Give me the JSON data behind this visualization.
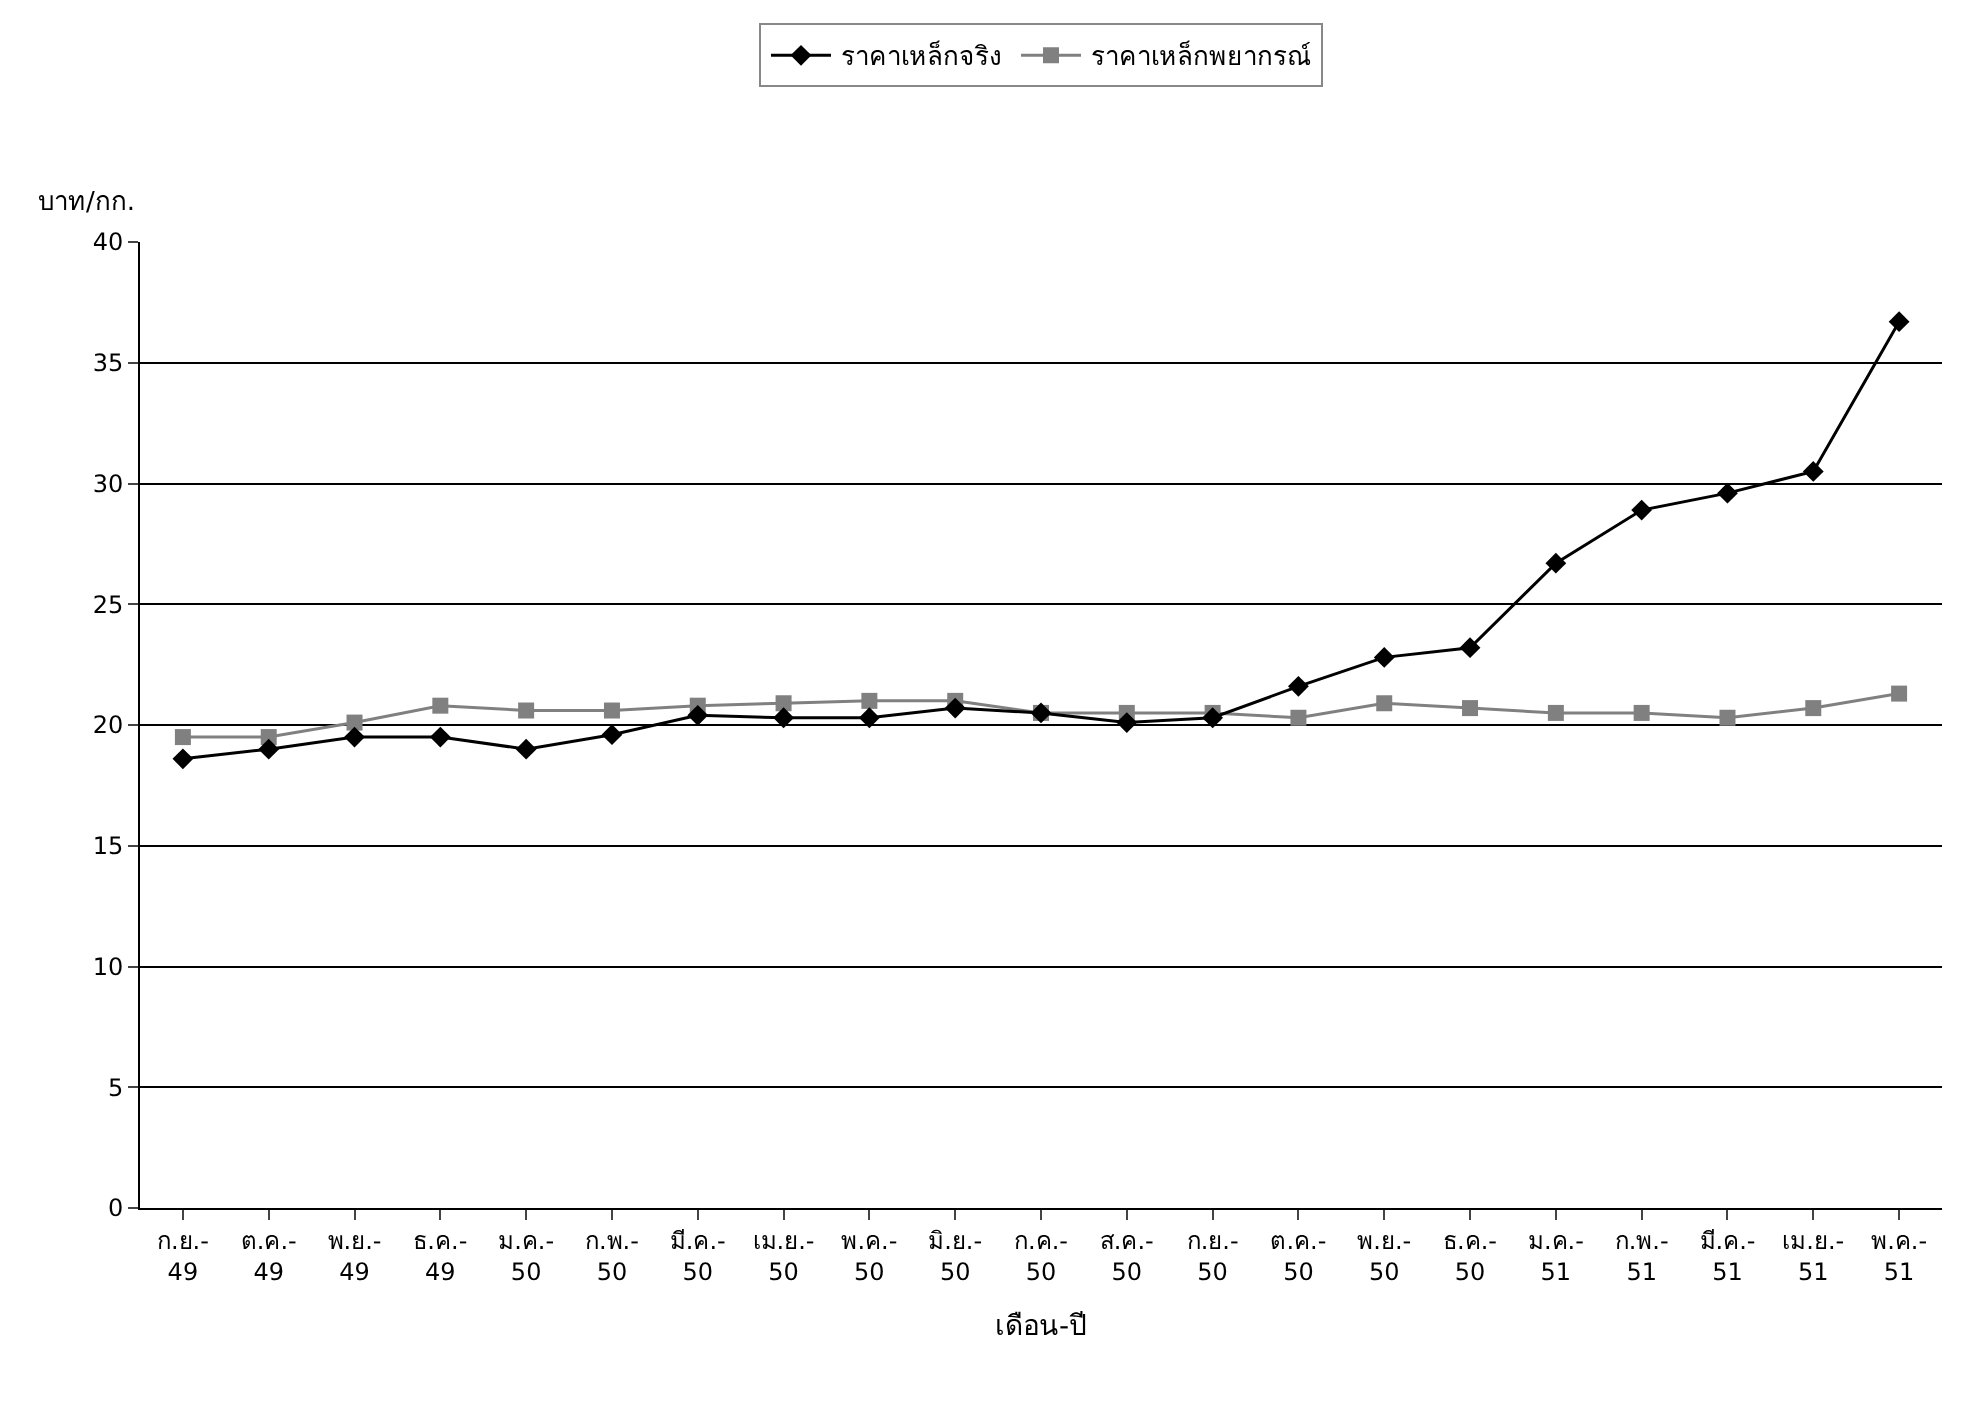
{
  "chart_data": {
    "type": "line",
    "xlabel": "เดือน-ปี",
    "ylabel": "บาท/กก.",
    "categories": [
      "ก.ย.-\n49",
      "ต.ค.-\n49",
      "พ.ย.-\n49",
      "ธ.ค.-\n49",
      "ม.ค.-\n50",
      "ก.พ.-\n50",
      "มี.ค.-\n50",
      "เม.ย.-\n50",
      "พ.ค.-\n50",
      "มิ.ย.-\n50",
      "ก.ค.-\n50",
      "ส.ค.-\n50",
      "ก.ย.-\n50",
      "ต.ค.-\n50",
      "พ.ย.-\n50",
      "ธ.ค.-\n50",
      "ม.ค.-\n51",
      "ก.พ.-\n51",
      "มี.ค.-\n51",
      "เม.ย.-\n51",
      "พ.ค.-\n51"
    ],
    "series": [
      {
        "name": "ราคาเหล็กจริง",
        "color": "#000000",
        "marker": "diamond",
        "values": [
          18.6,
          19.0,
          19.5,
          19.5,
          19.0,
          19.6,
          20.4,
          20.3,
          20.3,
          20.7,
          20.5,
          20.1,
          20.3,
          21.6,
          22.8,
          23.2,
          26.7,
          28.9,
          29.6,
          30.5,
          36.7
        ]
      },
      {
        "name": "ราคาเหล็กพยากรณ์",
        "color": "#808080",
        "marker": "square",
        "values": [
          19.5,
          19.5,
          20.1,
          20.8,
          20.6,
          20.6,
          20.8,
          20.9,
          21.0,
          21.0,
          20.5,
          20.5,
          20.5,
          20.3,
          20.9,
          20.7,
          20.5,
          20.5,
          20.3,
          20.7,
          21.3
        ]
      }
    ],
    "ylim": [
      0,
      40
    ],
    "yticks": [
      0,
      5,
      10,
      15,
      20,
      25,
      30,
      35,
      40
    ],
    "grid": "y",
    "legend": "top",
    "line_style": "solid"
  }
}
